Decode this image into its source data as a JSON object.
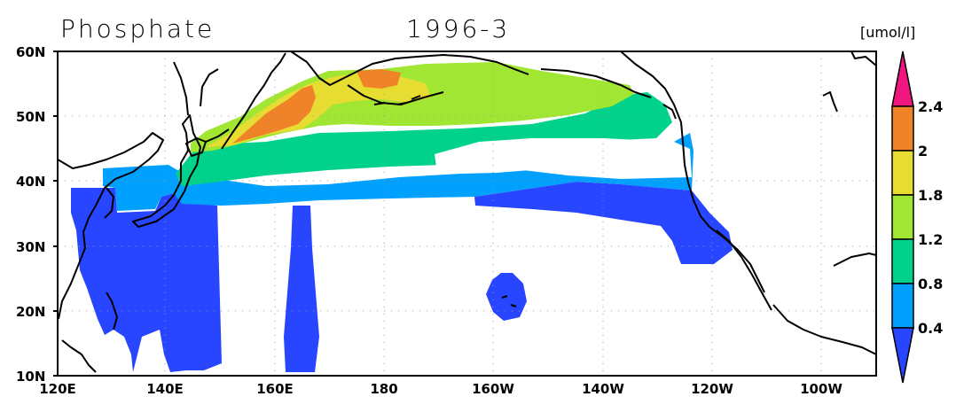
{
  "map": {
    "title": "Phosphate",
    "period": "1996-3",
    "units": "[umol/l]",
    "lat_ticks": [
      "60N",
      "50N",
      "40N",
      "30N",
      "20N",
      "10N"
    ],
    "lon_ticks": [
      "120E",
      "140E",
      "160E",
      "180",
      "160W",
      "140W",
      "120W",
      "100W"
    ],
    "colorbar": {
      "labels": [
        "2.4",
        "2",
        "1.8",
        "1.2",
        "0.8",
        "0.4"
      ],
      "colors": {
        "over": "#f0157f",
        "c1": "#f08228",
        "c2": "#e6dc32",
        "c3": "#a0e632",
        "c4": "#00d28c",
        "c5": "#00a0ff",
        "under": "#2846ff"
      }
    }
  }
}
